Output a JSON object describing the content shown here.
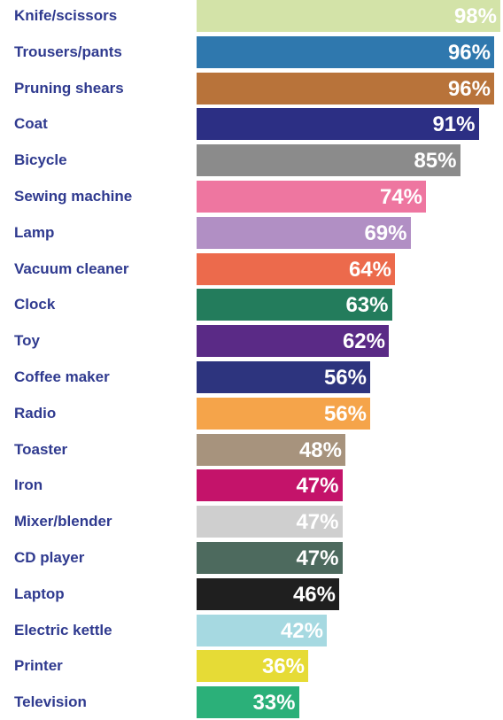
{
  "chart_data": {
    "type": "bar",
    "orientation": "horizontal",
    "title": "",
    "xlabel": "",
    "ylabel": "",
    "xlim": [
      0,
      100
    ],
    "grid": false,
    "categories": [
      "Knife/scissors",
      "Trousers/pants",
      "Pruning shears",
      "Coat",
      "Bicycle",
      "Sewing machine",
      "Lamp",
      "Vacuum cleaner",
      "Clock",
      "Toy",
      "Coffee maker",
      "Radio",
      "Toaster",
      "Iron",
      "Mixer/blender",
      "CD player",
      "Laptop",
      "Electric kettle",
      "Printer",
      "Television"
    ],
    "values": [
      98,
      96,
      96,
      91,
      85,
      74,
      69,
      64,
      63,
      62,
      56,
      56,
      48,
      47,
      47,
      47,
      46,
      42,
      36,
      33
    ],
    "value_labels": [
      "98%",
      "96%",
      "96%",
      "91%",
      "85%",
      "74%",
      "69%",
      "64%",
      "63%",
      "62%",
      "56%",
      "56%",
      "48%",
      "47%",
      "47%",
      "47%",
      "46%",
      "42%",
      "36%",
      "33%"
    ],
    "colors": [
      "#d3e3a8",
      "#2f78ae",
      "#b8733a",
      "#2c2f84",
      "#8b8b8b",
      "#ee76a0",
      "#b18fc4",
      "#ec6a4c",
      "#237c5c",
      "#5a2a86",
      "#2d347e",
      "#f5a44a",
      "#a7937d",
      "#c4136a",
      "#cfcfcf",
      "#4d6a5e",
      "#1f1f1f",
      "#a6d9e1",
      "#e6db36",
      "#2bb079"
    ],
    "label_color": "#2f3a8f",
    "value_label_color": "#ffffff"
  }
}
